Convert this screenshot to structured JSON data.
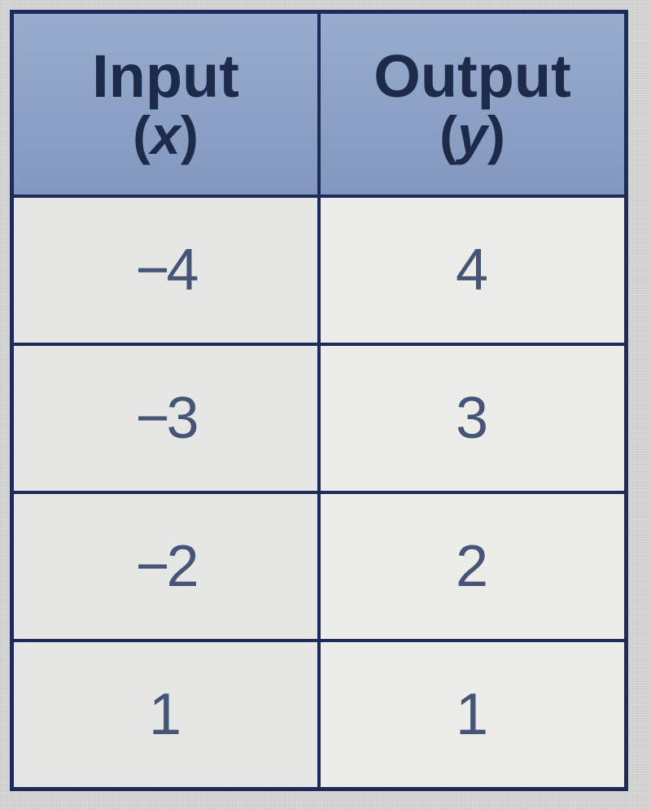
{
  "table": {
    "columns": [
      {
        "title": "Input",
        "variable": "x"
      },
      {
        "title": "Output",
        "variable": "y"
      }
    ],
    "rows": [
      {
        "x": "−4",
        "y": "4"
      },
      {
        "x": "−3",
        "y": "3"
      },
      {
        "x": "−2",
        "y": "2"
      },
      {
        "x": "1",
        "y": "1"
      }
    ],
    "colors": {
      "header_bg": "#8ea3c7",
      "border": "#1e2a5a",
      "text": "#2e3a5e",
      "data_bg_left": "#e6e6e4",
      "data_bg_right": "#ecece9",
      "page_bg": "#d8d8d8"
    },
    "typography": {
      "header_title_fontsize": 74,
      "header_sub_fontsize": 66,
      "data_fontsize": 72,
      "font_family": "Arial"
    },
    "layout": {
      "border_width": 5,
      "inner_border_width": 4,
      "columns_count": 2,
      "rows_count": 5
    }
  }
}
